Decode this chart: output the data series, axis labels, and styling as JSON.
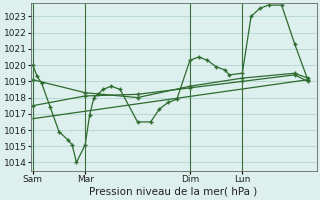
{
  "xlabel": "Pression niveau de la mer( hPa )",
  "ylim": [
    1013.5,
    1023.8
  ],
  "yticks": [
    1014,
    1015,
    1016,
    1017,
    1018,
    1019,
    1020,
    1021,
    1022,
    1023
  ],
  "xtick_labels": [
    "Sam",
    "Mar",
    "Dim",
    "Lun"
  ],
  "bg_color": "#ddf0ee",
  "line_color": "#2d6a2d",
  "grid_color": "#aacfcc",
  "vline_color": "#3a6e3a",
  "series1_x": [
    0,
    1,
    2,
    4,
    6,
    8,
    9,
    10,
    12,
    13,
    14,
    15,
    16,
    18,
    20,
    24,
    27,
    29,
    31,
    33,
    36,
    38,
    40,
    42,
    44,
    45,
    48,
    50,
    52,
    54,
    57,
    60,
    63
  ],
  "series1_y": [
    1020.0,
    1019.3,
    1018.9,
    1017.4,
    1015.9,
    1015.4,
    1015.1,
    1014.0,
    1015.1,
    1016.9,
    1018.0,
    1018.2,
    1018.5,
    1018.7,
    1018.5,
    1016.5,
    1016.5,
    1017.3,
    1017.7,
    1017.9,
    1020.3,
    1020.5,
    1020.3,
    1019.9,
    1019.7,
    1019.4,
    1019.5,
    1023.0,
    1023.5,
    1023.7,
    1023.7,
    1021.3,
    1019.1
  ],
  "series2_x": [
    0,
    12,
    24,
    36,
    48,
    60,
    63
  ],
  "series2_y": [
    1019.1,
    1018.3,
    1018.0,
    1018.7,
    1019.2,
    1019.5,
    1019.2
  ],
  "series3_x": [
    0,
    12,
    24,
    36,
    48,
    60,
    63
  ],
  "series3_y": [
    1017.5,
    1018.1,
    1018.2,
    1018.6,
    1019.0,
    1019.4,
    1019.0
  ],
  "series4_x": [
    0,
    63
  ],
  "series4_y": [
    1016.7,
    1019.1
  ],
  "vline_x": [
    0,
    12,
    36,
    48
  ],
  "xlim": [
    -0.5,
    65
  ]
}
